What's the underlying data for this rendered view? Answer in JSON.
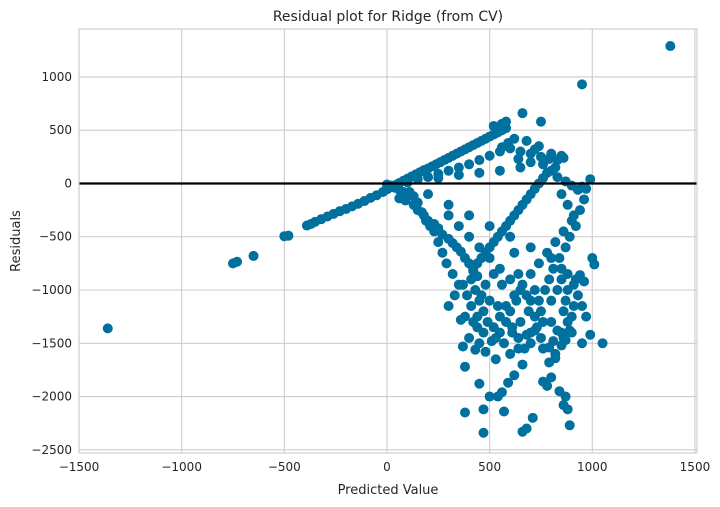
{
  "chart_data": {
    "type": "scatter",
    "title": "Residual plot for Ridge (from CV)",
    "xlabel": "Predicted Value",
    "ylabel": "Residuals",
    "xlim": [
      -1500,
      1510
    ],
    "ylim": [
      -2530,
      1450
    ],
    "xticks": [
      -1500,
      -1000,
      -500,
      0,
      500,
      1000,
      1500
    ],
    "xtick_labels": [
      "−1500",
      "−1000",
      "−500",
      "0",
      "500",
      "1000",
      "1500"
    ],
    "yticks": [
      -2500,
      -2000,
      -1500,
      -1000,
      -500,
      0,
      500,
      1000
    ],
    "ytick_labels": [
      "−2500",
      "−2000",
      "−1500",
      "−1000",
      "−500",
      "0",
      "500",
      "1000"
    ],
    "grid": true,
    "reference_line_y": 0,
    "series": [
      {
        "color": "#00709e",
        "points": [
          [
            -1360,
            -1360
          ],
          [
            -750,
            -750
          ],
          [
            -730,
            -735
          ],
          [
            -650,
            -680
          ],
          [
            -500,
            -495
          ],
          [
            -480,
            -490
          ],
          [
            -390,
            -395
          ],
          [
            -370,
            -380
          ],
          [
            -350,
            -360
          ],
          [
            -320,
            -335
          ],
          [
            -290,
            -310
          ],
          [
            -260,
            -285
          ],
          [
            -230,
            -260
          ],
          [
            -200,
            -240
          ],
          [
            -170,
            -215
          ],
          [
            -140,
            -190
          ],
          [
            -110,
            -165
          ],
          [
            -80,
            -135
          ],
          [
            -50,
            -110
          ],
          [
            -20,
            -80
          ],
          [
            0,
            -55
          ],
          [
            20,
            -35
          ],
          [
            40,
            -15
          ],
          [
            60,
            5
          ],
          [
            80,
            25
          ],
          [
            100,
            45
          ],
          [
            120,
            65
          ],
          [
            140,
            85
          ],
          [
            160,
            105
          ],
          [
            180,
            125
          ],
          [
            200,
            140
          ],
          [
            220,
            160
          ],
          [
            240,
            180
          ],
          [
            260,
            200
          ],
          [
            280,
            220
          ],
          [
            300,
            240
          ],
          [
            320,
            260
          ],
          [
            340,
            280
          ],
          [
            360,
            300
          ],
          [
            380,
            320
          ],
          [
            400,
            340
          ],
          [
            420,
            360
          ],
          [
            440,
            380
          ],
          [
            460,
            400
          ],
          [
            480,
            420
          ],
          [
            500,
            440
          ],
          [
            520,
            460
          ],
          [
            540,
            480
          ],
          [
            560,
            500
          ],
          [
            580,
            520
          ],
          [
            520,
            540
          ],
          [
            560,
            560
          ],
          [
            580,
            580
          ],
          [
            660,
            660
          ],
          [
            750,
            580
          ],
          [
            950,
            930
          ],
          [
            1380,
            1290
          ],
          [
            990,
            40
          ],
          [
            0,
            -10
          ],
          [
            20,
            -20
          ],
          [
            40,
            -40
          ],
          [
            60,
            -60
          ],
          [
            80,
            -80
          ],
          [
            100,
            -100
          ],
          [
            60,
            -140
          ],
          [
            90,
            -160
          ],
          [
            130,
            -200
          ],
          [
            150,
            -250
          ],
          [
            180,
            -300
          ],
          [
            200,
            -350
          ],
          [
            230,
            -380
          ],
          [
            250,
            -420
          ],
          [
            270,
            -480
          ],
          [
            300,
            -520
          ],
          [
            320,
            -560
          ],
          [
            340,
            -600
          ],
          [
            360,
            -640
          ],
          [
            380,
            -700
          ],
          [
            400,
            -750
          ],
          [
            420,
            -820
          ],
          [
            440,
            -870
          ],
          [
            300,
            -300
          ],
          [
            350,
            -400
          ],
          [
            400,
            -500
          ],
          [
            450,
            -600
          ],
          [
            500,
            -700
          ],
          [
            550,
            -800
          ],
          [
            600,
            -900
          ],
          [
            650,
            -1000
          ],
          [
            700,
            -1100
          ],
          [
            750,
            -1200
          ],
          [
            800,
            -1300
          ],
          [
            850,
            -1400
          ],
          [
            200,
            -100
          ],
          [
            300,
            -200
          ],
          [
            400,
            -300
          ],
          [
            500,
            -400
          ],
          [
            600,
            -500
          ],
          [
            700,
            -600
          ],
          [
            800,
            -700
          ],
          [
            850,
            -800
          ],
          [
            250,
            50
          ],
          [
            350,
            80
          ],
          [
            450,
            100
          ],
          [
            550,
            120
          ],
          [
            650,
            150
          ],
          [
            700,
            200
          ],
          [
            750,
            250
          ],
          [
            800,
            280
          ],
          [
            850,
            260
          ],
          [
            820,
            150
          ],
          [
            780,
            100
          ],
          [
            760,
            50
          ],
          [
            740,
            0
          ],
          [
            720,
            -50
          ],
          [
            700,
            -100
          ],
          [
            680,
            -150
          ],
          [
            660,
            -200
          ],
          [
            640,
            -250
          ],
          [
            620,
            -300
          ],
          [
            600,
            -350
          ],
          [
            580,
            -400
          ],
          [
            560,
            -450
          ],
          [
            540,
            -500
          ],
          [
            520,
            -550
          ],
          [
            500,
            -600
          ],
          [
            480,
            -650
          ],
          [
            460,
            -700
          ],
          [
            440,
            -750
          ],
          [
            420,
            -800
          ],
          [
            410,
            -900
          ],
          [
            430,
            -1000
          ],
          [
            450,
            -1100
          ],
          [
            470,
            -1200
          ],
          [
            490,
            -1300
          ],
          [
            380,
            -1250
          ],
          [
            360,
            -1280
          ],
          [
            420,
            -1300
          ],
          [
            440,
            -1350
          ],
          [
            370,
            -1530
          ],
          [
            400,
            -1450
          ],
          [
            450,
            -1500
          ],
          [
            530,
            -1450
          ],
          [
            600,
            -1600
          ],
          [
            640,
            -1550
          ],
          [
            680,
            -1420
          ],
          [
            720,
            -1380
          ],
          [
            760,
            -1550
          ],
          [
            790,
            -1680
          ],
          [
            820,
            -1600
          ],
          [
            860,
            -1450
          ],
          [
            900,
            -1400
          ],
          [
            950,
            -1500
          ],
          [
            990,
            -1420
          ],
          [
            1000,
            -700
          ],
          [
            1010,
            -760
          ],
          [
            1050,
            -1500
          ],
          [
            960,
            -920
          ],
          [
            940,
            -860
          ],
          [
            920,
            -900
          ],
          [
            880,
            -1000
          ],
          [
            870,
            -1100
          ],
          [
            860,
            -1200
          ],
          [
            880,
            -1300
          ],
          [
            900,
            -1250
          ],
          [
            380,
            -1720
          ],
          [
            450,
            -1880
          ],
          [
            590,
            -1870
          ],
          [
            560,
            -1960
          ],
          [
            540,
            -2000
          ],
          [
            500,
            -2000
          ],
          [
            470,
            -2340
          ],
          [
            380,
            -2150
          ],
          [
            470,
            -2120
          ],
          [
            570,
            -2140
          ],
          [
            660,
            -2330
          ],
          [
            680,
            -2300
          ],
          [
            710,
            -2200
          ],
          [
            760,
            -1860
          ],
          [
            870,
            -2000
          ],
          [
            890,
            -2270
          ],
          [
            780,
            -1900
          ],
          [
            800,
            -1820
          ],
          [
            840,
            -1950
          ],
          [
            860,
            -2080
          ],
          [
            880,
            -2120
          ],
          [
            820,
            -1640
          ],
          [
            700,
            -1500
          ],
          [
            660,
            -1700
          ],
          [
            620,
            -1800
          ],
          [
            480,
            -1580
          ],
          [
            430,
            -1560
          ],
          [
            520,
            -1350
          ],
          [
            550,
            -1250
          ],
          [
            580,
            -1150
          ],
          [
            620,
            -1050
          ],
          [
            660,
            -950
          ],
          [
            700,
            -850
          ],
          [
            740,
            -750
          ],
          [
            780,
            -650
          ],
          [
            820,
            -550
          ],
          [
            860,
            -450
          ],
          [
            900,
            -350
          ],
          [
            940,
            -250
          ],
          [
            960,
            -150
          ],
          [
            970,
            -50
          ],
          [
            950,
            -30
          ],
          [
            850,
            -100
          ],
          [
            880,
            -200
          ],
          [
            910,
            -300
          ],
          [
            920,
            -400
          ],
          [
            890,
            -500
          ],
          [
            870,
            -600
          ],
          [
            840,
            -700
          ],
          [
            810,
            -800
          ],
          [
            790,
            -900
          ],
          [
            770,
            -1000
          ],
          [
            740,
            -1100
          ],
          [
            720,
            -1000
          ],
          [
            690,
            -1200
          ],
          [
            650,
            -1300
          ],
          [
            610,
            -1400
          ],
          [
            570,
            -1500
          ],
          [
            530,
            -1650
          ],
          [
            300,
            -1150
          ],
          [
            330,
            -1050
          ],
          [
            350,
            -950
          ],
          [
            320,
            -850
          ],
          [
            290,
            -750
          ],
          [
            270,
            -650
          ],
          [
            250,
            -550
          ],
          [
            230,
            -450
          ],
          [
            210,
            -400
          ],
          [
            190,
            -350
          ],
          [
            170,
            -270
          ],
          [
            150,
            -180
          ],
          [
            130,
            -120
          ],
          [
            110,
            -80
          ],
          [
            100,
            10
          ],
          [
            150,
            40
          ],
          [
            200,
            60
          ],
          [
            250,
            90
          ],
          [
            300,
            120
          ],
          [
            350,
            150
          ],
          [
            400,
            180
          ],
          [
            450,
            220
          ],
          [
            500,
            260
          ],
          [
            550,
            300
          ],
          [
            600,
            330
          ],
          [
            650,
            300
          ],
          [
            700,
            280
          ],
          [
            720,
            320
          ],
          [
            740,
            350
          ],
          [
            680,
            400
          ],
          [
            620,
            420
          ],
          [
            590,
            380
          ],
          [
            560,
            340
          ],
          [
            640,
            230
          ],
          [
            760,
            180
          ],
          [
            790,
            230
          ],
          [
            830,
            220
          ],
          [
            860,
            240
          ],
          [
            800,
            120
          ],
          [
            830,
            60
          ],
          [
            870,
            20
          ],
          [
            900,
            -20
          ],
          [
            930,
            -60
          ],
          [
            960,
            -40
          ],
          [
            620,
            -650
          ],
          [
            640,
            -850
          ],
          [
            560,
            -950
          ],
          [
            520,
            -850
          ],
          [
            480,
            -950
          ],
          [
            460,
            -1050
          ],
          [
            500,
            -1100
          ],
          [
            540,
            -1150
          ],
          [
            600,
            -1200
          ],
          [
            630,
            -1100
          ],
          [
            680,
            -1050
          ],
          [
            720,
            -1250
          ],
          [
            760,
            -1300
          ],
          [
            800,
            -1100
          ],
          [
            830,
            -1000
          ],
          [
            850,
            -900
          ],
          [
            880,
            -850
          ],
          [
            910,
            -950
          ],
          [
            930,
            -1050
          ],
          [
            950,
            -1150
          ],
          [
            970,
            -1250
          ],
          [
            910,
            -1150
          ],
          [
            890,
            -1380
          ],
          [
            870,
            -1470
          ],
          [
            850,
            -1520
          ],
          [
            830,
            -1380
          ],
          [
            810,
            -1480
          ],
          [
            790,
            -1540
          ],
          [
            750,
            -1450
          ],
          [
            730,
            -1350
          ],
          [
            700,
            -1400
          ],
          [
            670,
            -1550
          ],
          [
            640,
            -1450
          ],
          [
            610,
            -1350
          ],
          [
            580,
            -1300
          ],
          [
            550,
            -1400
          ],
          [
            510,
            -1480
          ],
          [
            470,
            -1400
          ],
          [
            440,
            -1250
          ],
          [
            410,
            -1150
          ],
          [
            390,
            -1050
          ],
          [
            370,
            -950
          ]
        ]
      }
    ]
  }
}
